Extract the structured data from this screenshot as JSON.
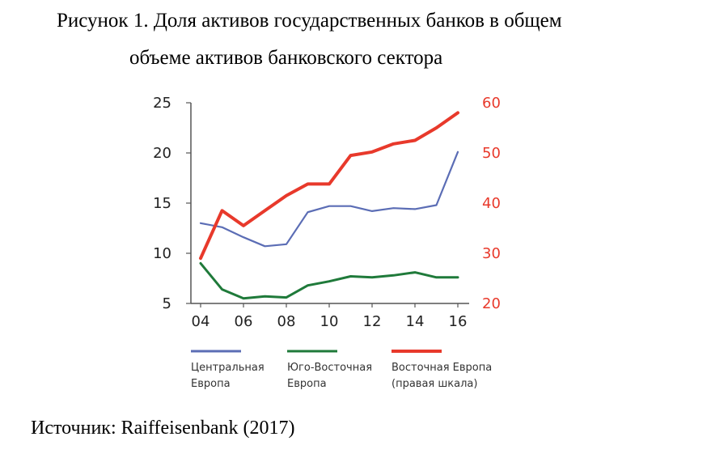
{
  "title_line1": "Рисунок 1. Доля активов государственных банков в общем",
  "title_line2": "объеме активов банковского сектора",
  "source": "Источник: Raiffeisenbank (2017)",
  "chart_data": {
    "type": "line",
    "x_tick_labels": [
      "04",
      "06",
      "08",
      "10",
      "12",
      "14",
      "16"
    ],
    "x": [
      2004,
      2005,
      2006,
      2007,
      2008,
      2009,
      2010,
      2011,
      2012,
      2013,
      2014,
      2015,
      2016
    ],
    "y_left_ticks": [
      "25",
      "20",
      "15",
      "10",
      "5"
    ],
    "y_right_ticks": [
      "60",
      "50",
      "40",
      "30",
      "20"
    ],
    "ylim_left": [
      5,
      25
    ],
    "ylim_right": [
      20,
      60
    ],
    "grid": false,
    "legend_position": "bottom",
    "series": [
      {
        "name": "Центральная Европа",
        "legend_lines": [
          "Центральная",
          "Европа"
        ],
        "axis": "left",
        "color": "#5B6DB5",
        "values": [
          13.0,
          12.6,
          11.6,
          10.7,
          10.9,
          14.1,
          14.7,
          14.7,
          14.2,
          14.5,
          14.4,
          14.8,
          20.1
        ]
      },
      {
        "name": "Юго-Восточная Европа",
        "legend_lines": [
          "Юго-Восточная",
          "Европа"
        ],
        "axis": "left",
        "color": "#1F7A3A",
        "values": [
          9.0,
          6.4,
          5.5,
          5.7,
          5.6,
          6.8,
          7.2,
          7.7,
          7.6,
          7.8,
          8.1,
          7.6,
          7.6
        ]
      },
      {
        "name": "Восточная Европа (правая шкала)",
        "legend_lines": [
          "Восточная Европа",
          "(правая шкала)"
        ],
        "axis": "right",
        "color": "#E8392B",
        "values": [
          29.0,
          38.5,
          35.5,
          38.5,
          41.5,
          43.8,
          43.8,
          49.5,
          50.2,
          51.8,
          52.5,
          55.0,
          58.0
        ]
      }
    ]
  }
}
